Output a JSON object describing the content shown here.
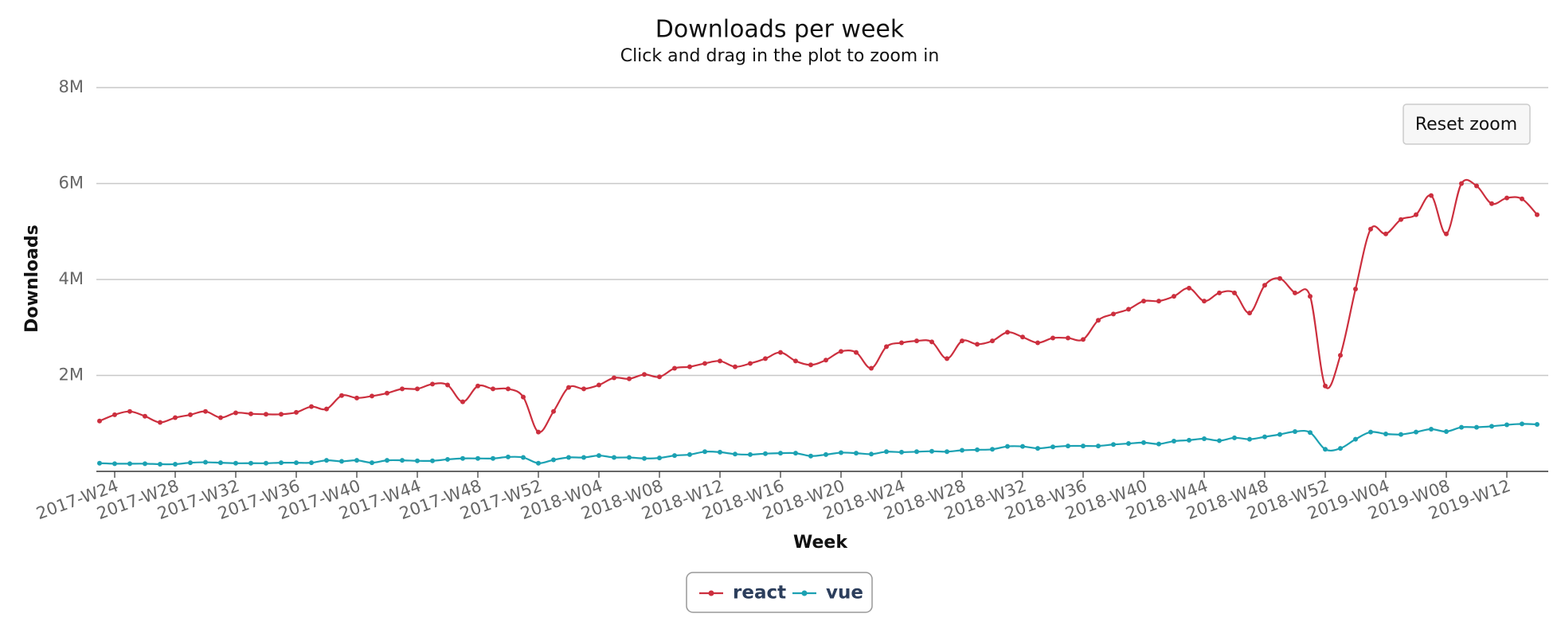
{
  "chart_data": {
    "type": "line",
    "title": "Downloads per week",
    "subtitle": "Click and drag in the plot to zoom in",
    "xlabel": "Week",
    "ylabel": "Downloads",
    "button": "Reset zoom",
    "categories": [
      null,
      "2017-W24",
      null,
      null,
      null,
      "2017-W28",
      null,
      null,
      null,
      "2017-W32",
      null,
      null,
      null,
      "2017-W36",
      null,
      null,
      null,
      "2017-W40",
      null,
      null,
      null,
      "2017-W44",
      null,
      null,
      null,
      "2017-W48",
      null,
      null,
      null,
      "2017-W52",
      null,
      null,
      null,
      "2018-W04",
      null,
      null,
      null,
      "2018-W08",
      null,
      null,
      null,
      "2018-W12",
      null,
      null,
      null,
      "2018-W16",
      null,
      null,
      null,
      "2018-W20",
      null,
      null,
      null,
      "2018-W24",
      null,
      null,
      null,
      "2018-W28",
      null,
      null,
      null,
      "2018-W32",
      null,
      null,
      null,
      "2018-W36",
      null,
      null,
      null,
      "2018-W40",
      null,
      null,
      null,
      "2018-W44",
      null,
      null,
      null,
      "2018-W48",
      null,
      null,
      null,
      "2018-W52",
      null,
      null,
      null,
      "2019-W04",
      null,
      null,
      null,
      "2019-W08",
      null,
      null,
      null,
      "2019-W12",
      null,
      null
    ],
    "series": [
      {
        "name": "react",
        "color": "#cc2f3e",
        "values": [
          1050000,
          1180000,
          1250000,
          1150000,
          1020000,
          1120000,
          1180000,
          1250000,
          1120000,
          1220000,
          1200000,
          1190000,
          1190000,
          1230000,
          1350000,
          1300000,
          1580000,
          1530000,
          1570000,
          1630000,
          1720000,
          1720000,
          1820000,
          1800000,
          1450000,
          1780000,
          1720000,
          1720000,
          1550000,
          820000,
          1250000,
          1750000,
          1720000,
          1800000,
          1950000,
          1930000,
          2020000,
          1970000,
          2150000,
          2180000,
          2250000,
          2300000,
          2180000,
          2250000,
          2350000,
          2480000,
          2300000,
          2220000,
          2320000,
          2500000,
          2480000,
          2150000,
          2600000,
          2680000,
          2720000,
          2700000,
          2350000,
          2720000,
          2650000,
          2720000,
          2900000,
          2800000,
          2680000,
          2780000,
          2780000,
          2750000,
          3150000,
          3280000,
          3380000,
          3550000,
          3550000,
          3650000,
          3820000,
          3550000,
          3720000,
          3720000,
          3300000,
          3880000,
          4020000,
          3720000,
          3650000,
          1780000,
          2420000,
          3800000,
          5050000,
          4950000,
          5250000,
          5350000,
          5750000,
          4950000,
          6000000,
          5950000,
          5580000,
          5700000,
          5680000,
          5350000
        ]
      },
      {
        "name": "vue",
        "color": "#1ba1b2",
        "values": [
          170000,
          160000,
          160000,
          160000,
          150000,
          150000,
          180000,
          190000,
          180000,
          170000,
          170000,
          170000,
          180000,
          180000,
          180000,
          230000,
          210000,
          230000,
          180000,
          230000,
          230000,
          220000,
          220000,
          250000,
          270000,
          270000,
          270000,
          300000,
          290000,
          170000,
          240000,
          290000,
          290000,
          330000,
          290000,
          290000,
          270000,
          280000,
          330000,
          350000,
          410000,
          400000,
          360000,
          350000,
          370000,
          380000,
          380000,
          320000,
          350000,
          390000,
          380000,
          360000,
          410000,
          400000,
          410000,
          420000,
          410000,
          440000,
          450000,
          460000,
          520000,
          520000,
          480000,
          510000,
          530000,
          530000,
          530000,
          560000,
          580000,
          600000,
          570000,
          630000,
          650000,
          680000,
          640000,
          700000,
          670000,
          720000,
          770000,
          830000,
          810000,
          460000,
          480000,
          670000,
          820000,
          780000,
          770000,
          820000,
          880000,
          830000,
          920000,
          920000,
          940000,
          970000,
          990000,
          980000
        ]
      }
    ],
    "ylim": [
      0,
      8000000
    ],
    "yticks": [
      {
        "value": 2000000,
        "label": "2M"
      },
      {
        "value": 4000000,
        "label": "4M"
      },
      {
        "value": 6000000,
        "label": "6M"
      },
      {
        "value": 8000000,
        "label": "8M"
      }
    ],
    "grid": true,
    "legend": "bottom"
  }
}
